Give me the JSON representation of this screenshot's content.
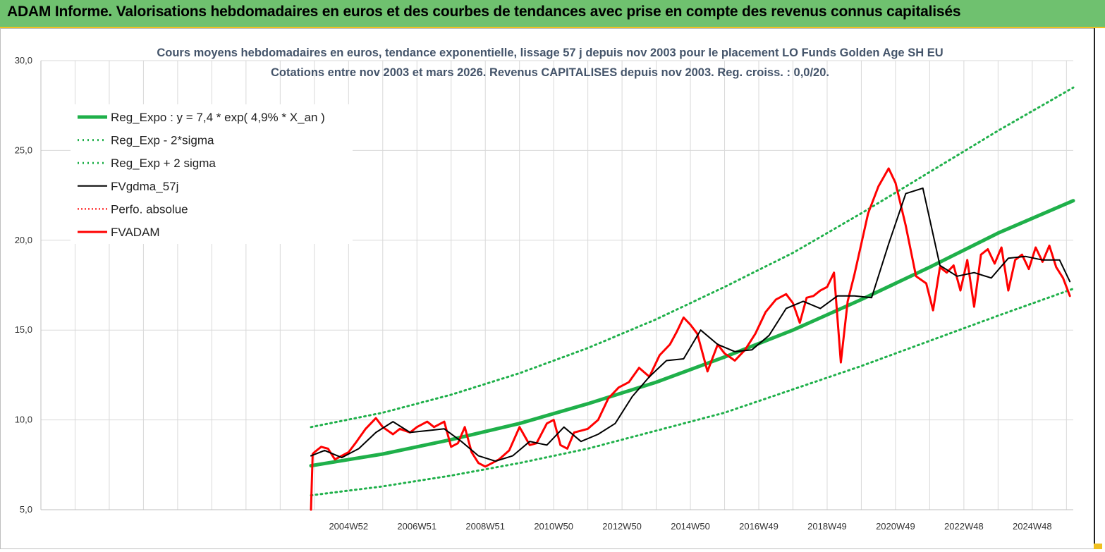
{
  "banner": {
    "title": "ADAM Informe. Valorisations hebdomadaires en euros et des courbes de tendances avec prise en compte des revenus connus capitalisés"
  },
  "colors": {
    "banner": "#6fc16f",
    "trend": "#1fb04a",
    "band": "#1fb04a",
    "smooth": "#000000",
    "perf": "#ff0000",
    "fvadam": "#ff0000"
  },
  "chart_data": {
    "type": "line",
    "title": "Cours moyens hebdomadaires en euros, tendance exponentielle, lissage 57 j depuis nov 2003  pour le placement LO Funds Golden Age SH EU",
    "subtitle": "Cotations entre nov 2003 et mars 2026. Revenus CAPITALISES depuis nov 2003. Reg. croiss. : 0,0/20.",
    "xlabel": "",
    "ylabel": "",
    "ylim": [
      5,
      30
    ],
    "xlim": [
      1996.0,
      2026.2
    ],
    "y_ticks": [
      "5,0",
      "10,0",
      "15,0",
      "20,0",
      "25,0",
      "30,0"
    ],
    "x_ticks": [
      {
        "label": "2004W52",
        "x": 2005.0
      },
      {
        "label": "2006W51",
        "x": 2007.0
      },
      {
        "label": "2008W51",
        "x": 2009.0
      },
      {
        "label": "2010W50",
        "x": 2011.0
      },
      {
        "label": "2012W50",
        "x": 2013.0
      },
      {
        "label": "2014W50",
        "x": 2015.0
      },
      {
        "label": "2016W49",
        "x": 2017.0
      },
      {
        "label": "2018W49",
        "x": 2019.0
      },
      {
        "label": "2020W49",
        "x": 2021.0
      },
      {
        "label": "2022W48",
        "x": 2023.0
      },
      {
        "label": "2024W48",
        "x": 2025.0
      }
    ],
    "grid": true,
    "legend_position": "top-left",
    "legend": [
      {
        "name": "Reg_Expo : y = 7,4 * exp( 4,9% *  X_an )",
        "style": "solid-thick-green"
      },
      {
        "name": "Reg_Exp - 2*sigma",
        "style": "dotted-green"
      },
      {
        "name": "Reg_Exp + 2 sigma",
        "style": "dotted-green"
      },
      {
        "name": "FVgdma_57j",
        "style": "solid-black"
      },
      {
        "name": "Perfo. absolue",
        "style": "dotted-red"
      },
      {
        "name": "FVADAM",
        "style": "solid-thick-red"
      }
    ],
    "series": [
      {
        "name": "Reg_Expo : y = 7,4 * exp( 4,9% *  X_an )",
        "x": [
          2003.9,
          2006.0,
          2008.0,
          2010.0,
          2012.0,
          2014.0,
          2016.0,
          2018.0,
          2020.0,
          2022.0,
          2024.0,
          2026.2
        ],
        "y": [
          7.45,
          8.1,
          8.9,
          9.8,
          10.9,
          12.1,
          13.5,
          15.0,
          16.7,
          18.5,
          20.4,
          22.2
        ]
      },
      {
        "name": "Reg_Exp - 2*sigma",
        "x": [
          2003.9,
          2006.0,
          2008.0,
          2010.0,
          2012.0,
          2014.0,
          2016.0,
          2018.0,
          2020.0,
          2022.0,
          2024.0,
          2026.2
        ],
        "y": [
          5.8,
          6.3,
          6.9,
          7.6,
          8.4,
          9.4,
          10.4,
          11.7,
          13.0,
          14.4,
          15.8,
          17.3
        ]
      },
      {
        "name": "Reg_Exp + 2 sigma",
        "x": [
          2003.9,
          2006.0,
          2008.0,
          2010.0,
          2012.0,
          2014.0,
          2016.0,
          2018.0,
          2020.0,
          2022.0,
          2024.0,
          2026.2
        ],
        "y": [
          9.6,
          10.4,
          11.4,
          12.6,
          14.0,
          15.6,
          17.4,
          19.3,
          21.5,
          23.8,
          26.1,
          28.5
        ]
      },
      {
        "name": "FVgdma_57j",
        "x": [
          2003.9,
          2004.3,
          2004.8,
          2005.3,
          2005.8,
          2006.3,
          2006.8,
          2007.3,
          2007.8,
          2008.3,
          2008.8,
          2009.3,
          2009.8,
          2010.3,
          2010.8,
          2011.3,
          2011.8,
          2012.3,
          2012.8,
          2013.3,
          2013.8,
          2014.3,
          2014.8,
          2015.3,
          2015.8,
          2016.3,
          2016.8,
          2017.3,
          2017.8,
          2018.3,
          2018.8,
          2019.3,
          2019.8,
          2020.3,
          2020.8,
          2021.3,
          2021.8,
          2022.3,
          2022.8,
          2023.3,
          2023.8,
          2024.3,
          2024.8,
          2025.3,
          2025.8,
          2026.1
        ],
        "y": [
          8.0,
          8.3,
          7.9,
          8.4,
          9.3,
          9.9,
          9.3,
          9.4,
          9.5,
          8.8,
          8.0,
          7.7,
          8.0,
          8.8,
          8.6,
          9.6,
          8.8,
          9.2,
          9.8,
          11.3,
          12.4,
          13.3,
          13.4,
          15.0,
          14.2,
          13.8,
          13.9,
          14.7,
          16.2,
          16.6,
          16.2,
          16.9,
          16.9,
          16.8,
          19.8,
          22.6,
          22.9,
          18.6,
          18.0,
          18.2,
          17.9,
          19.0,
          19.1,
          18.9,
          18.9,
          17.7
        ]
      },
      {
        "name": "FVADAM",
        "x": [
          2003.9,
          2003.95,
          2004.0,
          2004.2,
          2004.4,
          2004.6,
          2004.8,
          2005.0,
          2005.2,
          2005.5,
          2005.8,
          2006.0,
          2006.3,
          2006.5,
          2006.8,
          2007.0,
          2007.3,
          2007.5,
          2007.8,
          2008.0,
          2008.2,
          2008.4,
          2008.6,
          2008.8,
          2009.0,
          2009.2,
          2009.4,
          2009.7,
          2010.0,
          2010.3,
          2010.5,
          2010.8,
          2011.0,
          2011.2,
          2011.4,
          2011.6,
          2011.8,
          2012.0,
          2012.3,
          2012.6,
          2012.9,
          2013.2,
          2013.5,
          2013.8,
          2014.1,
          2014.4,
          2014.6,
          2014.8,
          2015.0,
          2015.2,
          2015.5,
          2015.8,
          2016.0,
          2016.3,
          2016.6,
          2016.9,
          2017.2,
          2017.5,
          2017.8,
          2018.0,
          2018.2,
          2018.4,
          2018.6,
          2018.8,
          2019.0,
          2019.2,
          2019.4,
          2019.6,
          2019.8,
          2020.0,
          2020.2,
          2020.5,
          2020.8,
          2021.0,
          2021.3,
          2021.6,
          2021.9,
          2022.1,
          2022.3,
          2022.5,
          2022.7,
          2022.9,
          2023.1,
          2023.3,
          2023.5,
          2023.7,
          2023.9,
          2024.1,
          2024.3,
          2024.5,
          2024.7,
          2024.9,
          2025.1,
          2025.3,
          2025.5,
          2025.7,
          2025.9,
          2026.1
        ],
        "y": [
          5.0,
          8.1,
          8.2,
          8.5,
          8.4,
          7.8,
          8.0,
          8.2,
          8.7,
          9.5,
          10.1,
          9.6,
          9.2,
          9.5,
          9.3,
          9.6,
          9.9,
          9.6,
          9.9,
          8.5,
          8.7,
          9.6,
          8.2,
          7.6,
          7.4,
          7.6,
          7.8,
          8.3,
          9.6,
          8.6,
          8.7,
          9.8,
          10.0,
          8.6,
          8.4,
          9.3,
          9.4,
          9.5,
          10.0,
          11.2,
          11.8,
          12.1,
          12.9,
          12.4,
          13.6,
          14.2,
          14.9,
          15.7,
          15.3,
          14.8,
          12.7,
          14.2,
          13.7,
          13.3,
          13.9,
          14.8,
          16.0,
          16.7,
          17.0,
          16.5,
          15.4,
          16.8,
          16.9,
          17.2,
          17.4,
          18.2,
          13.2,
          16.6,
          18.1,
          19.8,
          21.5,
          23.0,
          24.0,
          23.2,
          20.8,
          18.0,
          17.6,
          16.1,
          18.5,
          18.2,
          18.6,
          17.2,
          18.9,
          16.3,
          19.2,
          19.5,
          18.7,
          19.6,
          17.2,
          18.9,
          19.2,
          18.4,
          19.6,
          18.8,
          19.7,
          18.5,
          17.9,
          16.9
        ]
      }
    ]
  }
}
